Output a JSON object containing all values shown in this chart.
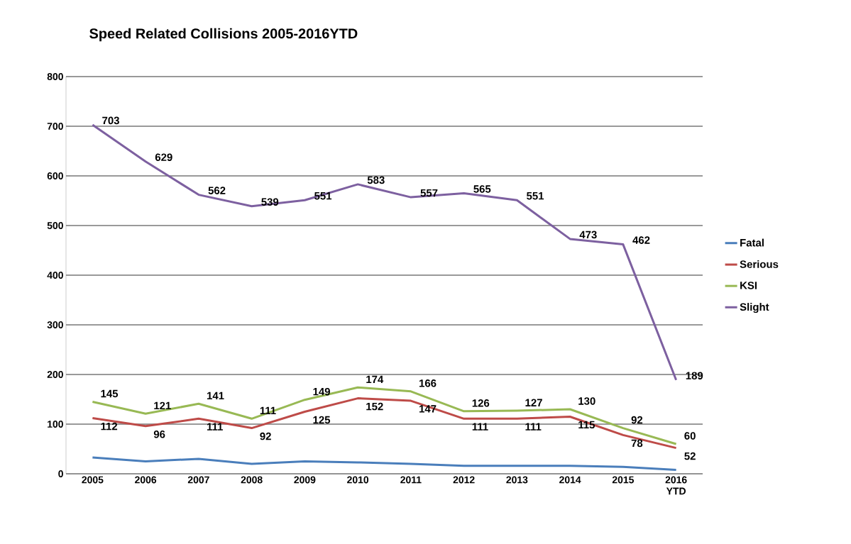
{
  "chart_data": {
    "type": "line",
    "title": "Speed Related Collisions 2005-2016YTD",
    "categories": [
      "2005",
      "2006",
      "2007",
      "2008",
      "2009",
      "2010",
      "2011",
      "2012",
      "2013",
      "2014",
      "2015",
      "2016 YTD"
    ],
    "series": [
      {
        "name": "Fatal",
        "color": "#4a7ebb",
        "values": [
          33,
          25,
          30,
          20,
          25,
          23,
          20,
          16,
          16,
          16,
          14,
          8
        ]
      },
      {
        "name": "Serious",
        "color": "#be4b48",
        "values": [
          112,
          96,
          111,
          92,
          125,
          152,
          147,
          111,
          111,
          115,
          78,
          52
        ],
        "value_labels": [
          "112",
          "96",
          "111",
          "92",
          "125",
          "152",
          "147",
          "111",
          "111",
          "115",
          "78",
          "52"
        ]
      },
      {
        "name": "KSI",
        "color": "#98b954",
        "values": [
          145,
          121,
          141,
          111,
          149,
          174,
          166,
          126,
          127,
          130,
          92,
          60
        ],
        "value_labels": [
          "145",
          "121",
          "141",
          "111",
          "149",
          "174",
          "166",
          "126",
          "127",
          "130",
          "92",
          "60"
        ]
      },
      {
        "name": "Slight",
        "color": "#7d60a0",
        "values": [
          703,
          629,
          562,
          539,
          551,
          583,
          557,
          565,
          551,
          473,
          462,
          189
        ],
        "value_labels": [
          "703",
          "629",
          "562",
          "539",
          "551",
          "583",
          "557",
          "565",
          "551",
          "473",
          "462",
          "189"
        ]
      }
    ],
    "ylim": [
      0,
      800
    ],
    "yticks": [
      0,
      100,
      200,
      300,
      400,
      500,
      600,
      700,
      800
    ],
    "grid": "y",
    "legend": "right",
    "marker": "none",
    "line_style": "solid"
  }
}
